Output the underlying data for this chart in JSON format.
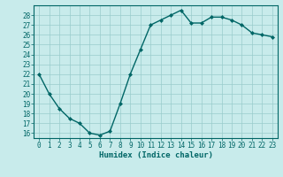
{
  "x": [
    0,
    1,
    2,
    3,
    4,
    5,
    6,
    7,
    8,
    9,
    10,
    11,
    12,
    13,
    14,
    15,
    16,
    17,
    18,
    19,
    20,
    21,
    22,
    23
  ],
  "y": [
    22,
    20,
    18.5,
    17.5,
    17,
    16,
    15.8,
    16.2,
    19,
    22,
    24.5,
    27,
    27.5,
    28,
    28.5,
    27.2,
    27.2,
    27.8,
    27.8,
    27.5,
    27,
    26.2,
    26,
    25.8
  ],
  "line_color": "#006666",
  "marker": "D",
  "marker_size": 2,
  "bg_color": "#c8ebeb",
  "grid_color": "#99cccc",
  "xlabel": "Humidex (Indice chaleur)",
  "ylim": [
    15.5,
    29
  ],
  "xlim": [
    -0.5,
    23.5
  ],
  "yticks": [
    16,
    17,
    18,
    19,
    20,
    21,
    22,
    23,
    24,
    25,
    26,
    27,
    28
  ],
  "xticks": [
    0,
    1,
    2,
    3,
    4,
    5,
    6,
    7,
    8,
    9,
    10,
    11,
    12,
    13,
    14,
    15,
    16,
    17,
    18,
    19,
    20,
    21,
    22,
    23
  ],
  "tick_label_fontsize": 5.5,
  "xlabel_fontsize": 6.5,
  "linewidth": 1.0
}
